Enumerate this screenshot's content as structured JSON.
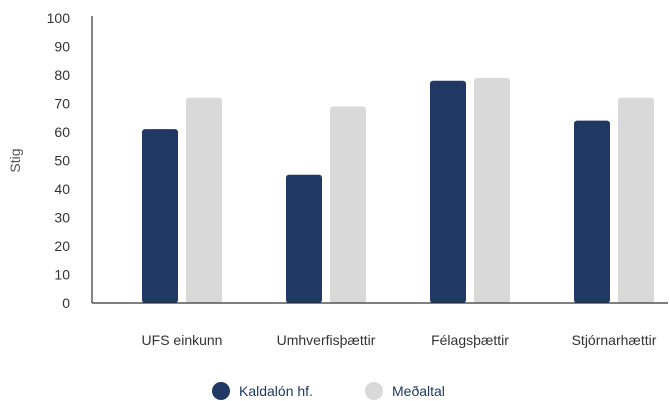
{
  "chart_data": {
    "type": "bar",
    "categories": [
      "UFS einkunn",
      "Umhverfisþættir",
      "Félagsþættir",
      "Stjórnarhættir"
    ],
    "series": [
      {
        "name": "Kaldalón hf.",
        "values": [
          61,
          45,
          78,
          64
        ],
        "color": "#1f3864"
      },
      {
        "name": "Meðaltal",
        "values": [
          72,
          69,
          79,
          72
        ],
        "color": "#d9d9d9"
      }
    ],
    "ylabel": "Stig",
    "xlabel": "",
    "ylim": [
      0,
      100
    ],
    "yticks": [
      0,
      10,
      20,
      30,
      40,
      50,
      60,
      70,
      80,
      90,
      100
    ],
    "grid": false,
    "legend_position": "bottom"
  }
}
